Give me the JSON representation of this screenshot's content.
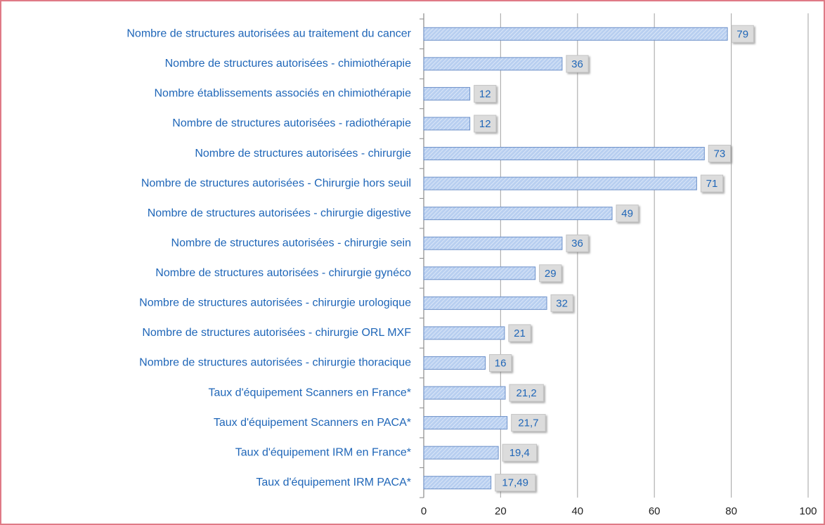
{
  "chart_data": {
    "type": "bar",
    "orientation": "horizontal",
    "categories": [
      "Nombre de structures autorisées au traitement du cancer",
      "Nombre de structures autorisées - chimiothérapie",
      "Nombre établissements associés en chimiothérapie",
      "Nombre de structures autorisées - radiothérapie",
      "Nombre de structures autorisées - chirurgie",
      "Nombre de structures autorisées - Chirurgie hors seuil",
      "Nombre de structures autorisées - chirurgie digestive",
      "Nombre de structures autorisées - chirurgie sein",
      "Nombre de structures autorisées - chirurgie gynéco",
      "Nombre de structures autorisées - chirurgie urologique",
      "Nombre de structures autorisées - chirurgie ORL MXF",
      "Nombre de structures autorisées - chirurgie thoracique",
      "Taux d'équipement Scanners en France*",
      "Taux d'équipement Scanners en PACA*",
      "Taux d'équipement IRM en France*",
      "Taux d'équipement IRM PACA*"
    ],
    "values": [
      79,
      36,
      12,
      12,
      73,
      71,
      49,
      36,
      29,
      32,
      21,
      16,
      21.2,
      21.7,
      19.4,
      17.49
    ],
    "value_labels": [
      "79",
      "36",
      "12",
      "12",
      "73",
      "71",
      "49",
      "36",
      "29",
      "32",
      "21",
      "16",
      "21,2",
      "21,7",
      "19,4",
      "17,49"
    ],
    "color": "#a9c4ec",
    "xlim": [
      0,
      100
    ],
    "xticks": [
      0,
      20,
      40,
      60,
      80,
      100
    ],
    "grid": true
  }
}
